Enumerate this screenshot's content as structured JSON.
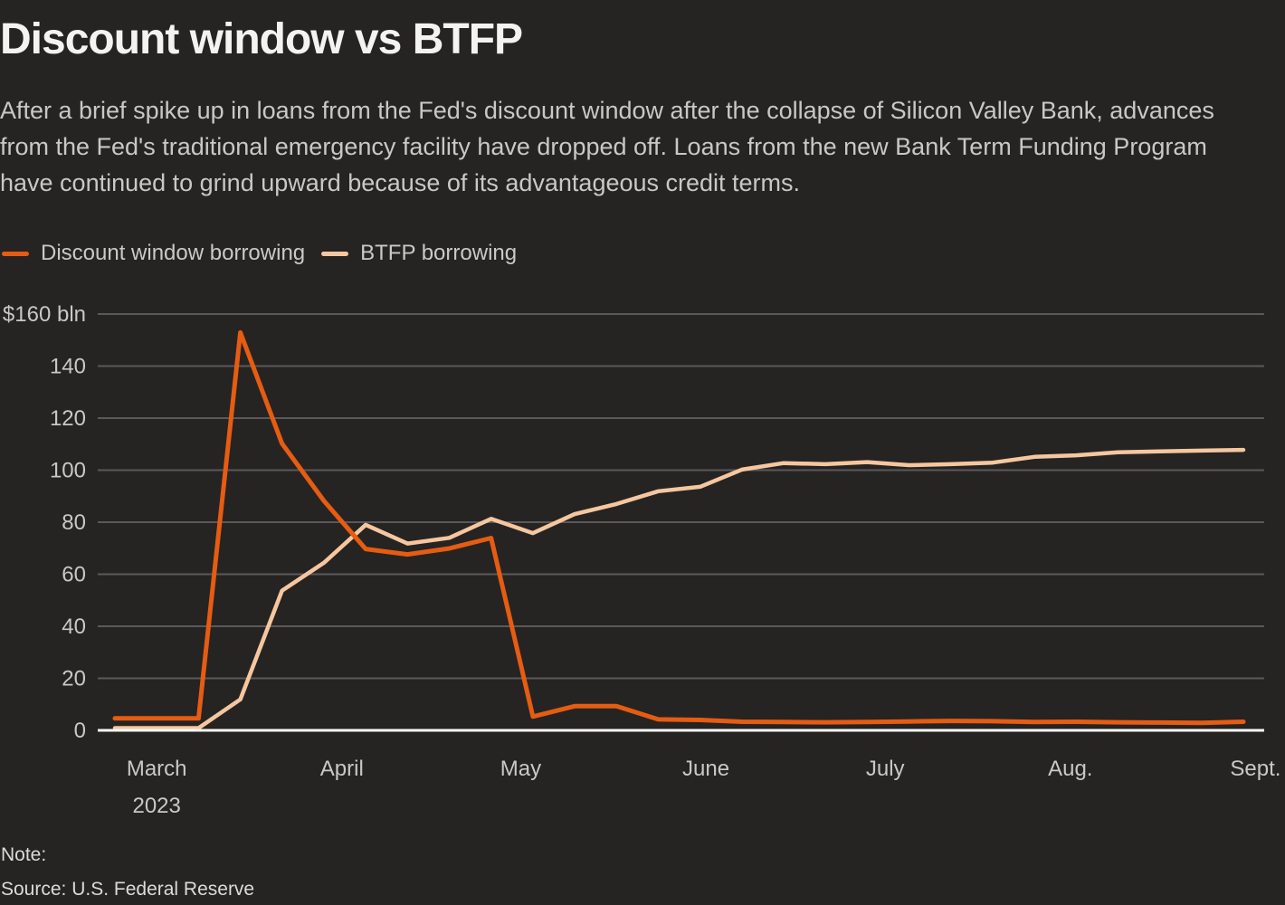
{
  "header": {
    "title": "Discount window vs BTFP",
    "subtitle": "After a brief spike up in loans from the Fed's discount window after the collapse of Silicon Valley Bank, advances from the Fed's traditional emergency facility have dropped off. Loans from the new Bank Term Funding Program have continued to grind upward because of its advantageous credit terms."
  },
  "legend": [
    {
      "label": "Discount window borrowing",
      "color": "#e55c12"
    },
    {
      "label": "BTFP borrowing",
      "color": "#f6c79f"
    }
  ],
  "footer": {
    "note": "Note:",
    "source": "Source: U.S. Federal Reserve"
  },
  "colors": {
    "background": "#262323",
    "gridline": "#5a5858",
    "zero_line": "#fbfaf8",
    "title_text": "#f4f3f1",
    "body_text": "#c9c8c6",
    "discount_window_line": "#e55c12",
    "btfp_line": "#f6c79f"
  },
  "chart_data": {
    "type": "line",
    "title": "Discount window vs BTFP",
    "unit": "$ bln",
    "ylabel": "",
    "xlabel": "",
    "ylim": [
      0,
      160
    ],
    "grid": "horizontal",
    "legend_position": "top-left",
    "y_ticks": [
      0,
      20,
      40,
      60,
      80,
      100,
      120,
      140,
      160
    ],
    "y_tick_top_label": "$160 bln",
    "x": [
      "2023-02-22",
      "2023-03-01",
      "2023-03-08",
      "2023-03-15",
      "2023-03-22",
      "2023-03-29",
      "2023-04-05",
      "2023-04-12",
      "2023-04-19",
      "2023-04-26",
      "2023-05-03",
      "2023-05-10",
      "2023-05-17",
      "2023-05-24",
      "2023-05-31",
      "2023-06-07",
      "2023-06-14",
      "2023-06-21",
      "2023-06-28",
      "2023-07-05",
      "2023-07-12",
      "2023-07-19",
      "2023-07-26",
      "2023-08-02",
      "2023-08-09",
      "2023-08-16",
      "2023-08-23",
      "2023-08-30"
    ],
    "series": [
      {
        "name": "Discount window borrowing",
        "color": "#e55c12",
        "values": [
          4.6,
          4.6,
          4.6,
          152.9,
          110.2,
          88.2,
          69.7,
          67.6,
          69.9,
          73.9,
          5.3,
          9.3,
          9.3,
          4.2,
          4.0,
          3.3,
          3.2,
          3.1,
          3.2,
          3.4,
          3.6,
          3.5,
          3.2,
          3.3,
          3.1,
          3.0,
          2.9,
          3.3
        ]
      },
      {
        "name": "BTFP borrowing",
        "color": "#f6c79f",
        "values": [
          0,
          0,
          0,
          11.9,
          53.7,
          64.4,
          79.0,
          71.8,
          74.0,
          81.3,
          75.8,
          83.1,
          87.0,
          91.9,
          93.6,
          100.2,
          102.7,
          102.3,
          103.1,
          101.9,
          102.3,
          102.9,
          105.1,
          105.7,
          106.9,
          107.2,
          107.5,
          107.8
        ]
      }
    ],
    "month_ticks": [
      {
        "label": "March",
        "sublabel": "2023",
        "week_offset": 1.0
      },
      {
        "label": "April",
        "week_offset": 5.43
      },
      {
        "label": "May",
        "week_offset": 9.71
      },
      {
        "label": "June",
        "week_offset": 14.14
      },
      {
        "label": "July",
        "week_offset": 18.43
      },
      {
        "label": "Aug.",
        "week_offset": 22.86
      },
      {
        "label": "Sept.",
        "week_offset": 27.29
      }
    ]
  }
}
